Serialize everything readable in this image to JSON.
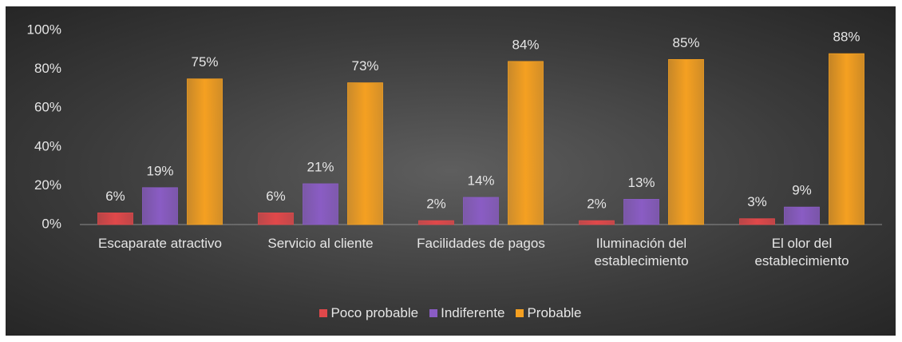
{
  "chart_data": {
    "type": "bar",
    "categories": [
      "Escaparate atractivo",
      "Servicio al cliente",
      "Facilidades de pagos",
      "Iluminación del establecimiento",
      "El olor del establecimiento"
    ],
    "series": [
      {
        "name": "Poco probable",
        "color": "#e0484a",
        "values": [
          6,
          6,
          2,
          2,
          3
        ],
        "value_labels": [
          "6%",
          "6%",
          "2%",
          "2%",
          "3%"
        ]
      },
      {
        "name": "Indiferente",
        "color": "#8a5cc4",
        "values": [
          19,
          21,
          14,
          13,
          9
        ],
        "value_labels": [
          "19%",
          "21%",
          "14%",
          "13%",
          "9%"
        ]
      },
      {
        "name": "Probable",
        "color": "#f5a021",
        "values": [
          75,
          73,
          84,
          85,
          88
        ],
        "value_labels": [
          "75%",
          "73%",
          "84%",
          "85%",
          "88%"
        ]
      }
    ],
    "ylim": [
      0,
      100
    ],
    "yticks": [
      {
        "value": 0,
        "label": "0%"
      },
      {
        "value": 20,
        "label": "20%"
      },
      {
        "value": 40,
        "label": "40%"
      },
      {
        "value": 60,
        "label": "60%"
      },
      {
        "value": 80,
        "label": "80%"
      },
      {
        "value": 100,
        "label": "100%"
      }
    ],
    "grid": false,
    "legend": "bottom"
  }
}
